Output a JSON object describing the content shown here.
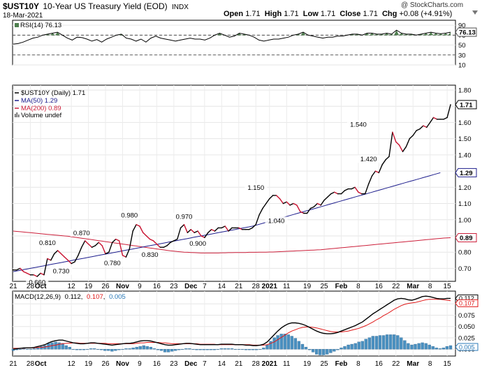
{
  "header": {
    "symbol": "$UST10Y",
    "description": "10-Year US Treasury Yield (EOD)",
    "exchange": "INDX",
    "date": "18-Mar-2021",
    "copyright": "@ StockCharts.com",
    "quote": {
      "open_label": "Open",
      "open": "1.71",
      "high_label": "High",
      "high": "1.71",
      "low_label": "Low",
      "low": "1.71",
      "close_label": "Close",
      "close": "1.71",
      "chg_label": "Chg",
      "chg": "+0.08 (+4.91%)"
    },
    "menu_icon": "triangle-down-icon"
  },
  "colors": {
    "price": "#000000",
    "ma50": "#1c1c8c",
    "ma200": "#cc1f3a",
    "hist": "#4a90c0",
    "rsi_fill": "#4f7f4f"
  },
  "chart_data": [
    {
      "type": "line",
      "panel": "rsi",
      "legend": "RSI(14) 76.13",
      "current_label": "76.13",
      "ticks": [
        "90",
        "70",
        "50",
        "30",
        "10"
      ],
      "ylim": [
        10,
        100
      ],
      "levels": [
        70,
        30
      ],
      "series": [
        {
          "name": "RSI(14)",
          "values": [
            52,
            53,
            56,
            60,
            64,
            66,
            70,
            72,
            74,
            76,
            70,
            64,
            60,
            66,
            65,
            62,
            58,
            61,
            56,
            62,
            66,
            70,
            72,
            64,
            62,
            58,
            62,
            56,
            64,
            68,
            64,
            62,
            60,
            58,
            60,
            62,
            64,
            62,
            62,
            60,
            64,
            70,
            74,
            70,
            66,
            68,
            74,
            72,
            70,
            66,
            60,
            58,
            60,
            62,
            62,
            64,
            66,
            70,
            72,
            76,
            70,
            68,
            66,
            64,
            66,
            66,
            68,
            68,
            70,
            72,
            72,
            70,
            74,
            74,
            72,
            72,
            74,
            72,
            80,
            74,
            72,
            72,
            70,
            72,
            74,
            76,
            74,
            73,
            74,
            76
          ]
        }
      ]
    },
    {
      "type": "line",
      "panel": "price",
      "legends": [
        "$UST10Y (Daily) 1.71",
        "MA(50) 1.29",
        "MA(200) 0.89",
        "Volume undef"
      ],
      "ticks": [
        "1.80",
        "1.70",
        "1.60",
        "1.50",
        "1.40",
        "1.30",
        "1.20",
        "1.10",
        "1.00",
        "0.90",
        "0.80",
        "0.70"
      ],
      "ylim": [
        0.62,
        1.83
      ],
      "last_labels": [
        {
          "text": "1.71",
          "series": "price"
        },
        {
          "text": "1.29",
          "series": "ma50"
        },
        {
          "text": "0.89",
          "series": "ma200"
        }
      ],
      "x_ticks": [
        {
          "label": "21",
          "i": 0
        },
        {
          "label": "28",
          "i": 5
        },
        {
          "label": "Oct",
          "i": 8
        },
        {
          "label": "12",
          "i": 17
        },
        {
          "label": "19",
          "i": 22
        },
        {
          "label": "26",
          "i": 27
        },
        {
          "label": "Nov",
          "i": 32
        },
        {
          "label": "9",
          "i": 37
        },
        {
          "label": "16",
          "i": 42
        },
        {
          "label": "23",
          "i": 47
        },
        {
          "label": "Dec",
          "i": 52
        },
        {
          "label": "7",
          "i": 56
        },
        {
          "label": "14",
          "i": 61
        },
        {
          "label": "21",
          "i": 66
        },
        {
          "label": "28",
          "i": 71
        },
        {
          "label": "2021",
          "i": 75
        },
        {
          "label": "11",
          "i": 80
        },
        {
          "label": "19",
          "i": 86
        },
        {
          "label": "25",
          "i": 91
        },
        {
          "label": "Feb",
          "i": 96
        },
        {
          "label": "8",
          "i": 101
        },
        {
          "label": "16",
          "i": 107
        },
        {
          "label": "22",
          "i": 112
        },
        {
          "label": "Mar",
          "i": 117
        },
        {
          "label": "8",
          "i": 122
        },
        {
          "label": "15",
          "i": 127
        }
      ],
      "annotations": [
        {
          "text": "0.660",
          "i": 7,
          "v": 0.66,
          "pos": "below"
        },
        {
          "text": "0.810",
          "i": 10,
          "v": 0.81,
          "pos": "above"
        },
        {
          "text": "0.730",
          "i": 14,
          "v": 0.73,
          "pos": "below"
        },
        {
          "text": "0.870",
          "i": 20,
          "v": 0.87,
          "pos": "above"
        },
        {
          "text": "0.780",
          "i": 29,
          "v": 0.78,
          "pos": "below"
        },
        {
          "text": "0.980",
          "i": 34,
          "v": 0.98,
          "pos": "above"
        },
        {
          "text": "0.830",
          "i": 40,
          "v": 0.83,
          "pos": "below"
        },
        {
          "text": "0.970",
          "i": 50,
          "v": 0.97,
          "pos": "above"
        },
        {
          "text": "0.900",
          "i": 54,
          "v": 0.9,
          "pos": "below"
        },
        {
          "text": "1.150",
          "i": 71,
          "v": 1.15,
          "pos": "above"
        },
        {
          "text": "1.040",
          "i": 77,
          "v": 1.04,
          "pos": "below"
        },
        {
          "text": "1.540",
          "i": 101,
          "v": 1.54,
          "pos": "above"
        },
        {
          "text": "1.420",
          "i": 104,
          "v": 1.42,
          "pos": "below"
        }
      ],
      "series": [
        {
          "name": "$UST10Y",
          "values": [
            0.69,
            0.69,
            0.7,
            0.68,
            0.67,
            0.66,
            0.66,
            0.65,
            0.67,
            0.66,
            0.76,
            0.75,
            0.79,
            0.81,
            0.79,
            0.77,
            0.75,
            0.73,
            0.74,
            0.78,
            0.83,
            0.87,
            0.85,
            0.83,
            0.84,
            0.86,
            0.84,
            0.79,
            0.8,
            0.86,
            0.88,
            0.87,
            0.78,
            0.77,
            0.82,
            0.93,
            0.97,
            0.96,
            0.92,
            0.9,
            0.88,
            0.87,
            0.85,
            0.83,
            0.83,
            0.84,
            0.86,
            0.87,
            0.88,
            0.95,
            0.97,
            0.92,
            0.94,
            0.92,
            0.93,
            0.9,
            0.89,
            0.92,
            0.94,
            0.93,
            0.95,
            0.95,
            0.96,
            0.93,
            0.95,
            0.95,
            0.95,
            0.94,
            0.94,
            0.94,
            0.95,
            0.97,
            1.03,
            1.07,
            1.1,
            1.13,
            1.15,
            1.15,
            1.13,
            1.1,
            1.11,
            1.09,
            1.1,
            1.09,
            1.05,
            1.04,
            1.04,
            1.07,
            1.08,
            1.1,
            1.09,
            1.12,
            1.14,
            1.16,
            1.17,
            1.16,
            1.16,
            1.18,
            1.19,
            1.19,
            1.2,
            1.17,
            1.16,
            1.16,
            1.22,
            1.27,
            1.3,
            1.29,
            1.34,
            1.37,
            1.39,
            1.54,
            1.48,
            1.46,
            1.42,
            1.45,
            1.5,
            1.52,
            1.55,
            1.56,
            1.58,
            1.57,
            1.6,
            1.63,
            1.62,
            1.62,
            1.62,
            1.63,
            1.71
          ]
        },
        {
          "name": "MA(50)",
          "values": [
            0.68,
            0.684,
            0.688,
            0.692,
            0.696,
            0.7,
            0.704,
            0.708,
            0.712,
            0.716,
            0.72,
            0.724,
            0.728,
            0.732,
            0.736,
            0.74,
            0.744,
            0.748,
            0.752,
            0.756,
            0.76,
            0.764,
            0.768,
            0.772,
            0.776,
            0.78,
            0.784,
            0.788,
            0.792,
            0.796,
            0.8,
            0.804,
            0.808,
            0.812,
            0.816,
            0.82,
            0.824,
            0.828,
            0.832,
            0.836,
            0.84,
            0.844,
            0.848,
            0.852,
            0.856,
            0.86,
            0.864,
            0.868,
            0.872,
            0.876,
            0.88,
            0.884,
            0.888,
            0.892,
            0.896,
            0.9,
            0.904,
            0.908,
            0.912,
            0.916,
            0.92,
            0.924,
            0.928,
            0.932,
            0.936,
            0.94,
            0.944,
            0.948,
            0.952,
            0.956,
            0.96,
            0.966,
            0.972,
            0.978,
            0.984,
            0.99,
            0.996,
            1.002,
            1.008,
            1.014,
            1.02,
            1.026,
            1.032,
            1.038,
            1.044,
            1.05,
            1.056,
            1.062,
            1.068,
            1.074,
            1.08,
            1.086,
            1.092,
            1.098,
            1.104,
            1.11,
            1.116,
            1.122,
            1.128,
            1.134,
            1.14,
            1.146,
            1.152,
            1.158,
            1.164,
            1.17,
            1.176,
            1.182,
            1.188,
            1.194,
            1.2,
            1.206,
            1.212,
            1.218,
            1.224,
            1.23,
            1.236,
            1.242,
            1.248,
            1.254,
            1.26,
            1.266,
            1.272,
            1.278,
            1.284,
            1.29
          ]
        },
        {
          "name": "MA(200)",
          "values": [
            0.93,
            0.928,
            0.926,
            0.924,
            0.922,
            0.92,
            0.918,
            0.916,
            0.914,
            0.912,
            0.91,
            0.908,
            0.906,
            0.904,
            0.902,
            0.9,
            0.898,
            0.895,
            0.892,
            0.889,
            0.886,
            0.883,
            0.88,
            0.877,
            0.874,
            0.871,
            0.868,
            0.865,
            0.862,
            0.859,
            0.856,
            0.853,
            0.85,
            0.847,
            0.844,
            0.841,
            0.838,
            0.835,
            0.832,
            0.829,
            0.826,
            0.823,
            0.82,
            0.817,
            0.814,
            0.811,
            0.808,
            0.806,
            0.804,
            0.802,
            0.8,
            0.799,
            0.798,
            0.797,
            0.796,
            0.795,
            0.795,
            0.795,
            0.795,
            0.795,
            0.795,
            0.796,
            0.796,
            0.797,
            0.797,
            0.798,
            0.798,
            0.798,
            0.798,
            0.799,
            0.799,
            0.799,
            0.8,
            0.8,
            0.8,
            0.801,
            0.801,
            0.802,
            0.803,
            0.804,
            0.805,
            0.806,
            0.807,
            0.808,
            0.809,
            0.81,
            0.811,
            0.812,
            0.813,
            0.814,
            0.815,
            0.817,
            0.819,
            0.821,
            0.823,
            0.825,
            0.827,
            0.829,
            0.831,
            0.833,
            0.835,
            0.837,
            0.839,
            0.841,
            0.843,
            0.845,
            0.847,
            0.849,
            0.851,
            0.853,
            0.855,
            0.857,
            0.859,
            0.861,
            0.863,
            0.865,
            0.867,
            0.869,
            0.871,
            0.873,
            0.875,
            0.877,
            0.879,
            0.881,
            0.883,
            0.885,
            0.887,
            0.888,
            0.889
          ]
        }
      ]
    },
    {
      "type": "line",
      "panel": "macd",
      "legend_prefix": "MACD(12,26,9)",
      "legend_macd": "0.112",
      "legend_signal": "0.107",
      "legend_hist": "0.005",
      "ticks": [
        "0.100",
        "0.075",
        "0.050",
        "0.025",
        "0.000"
      ],
      "ylim": [
        -0.015,
        0.128
      ],
      "last_labels": [
        "0.112",
        "0.107",
        "0.005"
      ],
      "series": [
        {
          "name": "MACD",
          "values": [
            0.0,
            0.001,
            0.002,
            0.003,
            0.003,
            0.003,
            0.004,
            0.006,
            0.008,
            0.01,
            0.014,
            0.017,
            0.019,
            0.02,
            0.02,
            0.018,
            0.016,
            0.014,
            0.013,
            0.012,
            0.012,
            0.013,
            0.014,
            0.014,
            0.013,
            0.012,
            0.011,
            0.01,
            0.009,
            0.01,
            0.011,
            0.012,
            0.013,
            0.013,
            0.014,
            0.016,
            0.018,
            0.019,
            0.019,
            0.018,
            0.016,
            0.014,
            0.012,
            0.01,
            0.009,
            0.009,
            0.01,
            0.011,
            0.012,
            0.013,
            0.013,
            0.012,
            0.011,
            0.01,
            0.01,
            0.01,
            0.01,
            0.01,
            0.01,
            0.011,
            0.011,
            0.011,
            0.011,
            0.01,
            0.01,
            0.01,
            0.009,
            0.009,
            0.008,
            0.008,
            0.009,
            0.011,
            0.016,
            0.024,
            0.032,
            0.04,
            0.047,
            0.052,
            0.056,
            0.058,
            0.058,
            0.057,
            0.055,
            0.052,
            0.048,
            0.044,
            0.04,
            0.037,
            0.035,
            0.034,
            0.034,
            0.035,
            0.037,
            0.04,
            0.043,
            0.046,
            0.049,
            0.052,
            0.056,
            0.06,
            0.066,
            0.072,
            0.078,
            0.083,
            0.088,
            0.093,
            0.098,
            0.103,
            0.108,
            0.111,
            0.112,
            0.111,
            0.109,
            0.108,
            0.11,
            0.113,
            0.116,
            0.117,
            0.116,
            0.114,
            0.112,
            0.111,
            0.111,
            0.112,
            0.112
          ]
        },
        {
          "name": "Signal",
          "values": [
            0.002,
            0.002,
            0.002,
            0.002,
            0.003,
            0.003,
            0.003,
            0.004,
            0.004,
            0.005,
            0.006,
            0.008,
            0.009,
            0.011,
            0.012,
            0.013,
            0.013,
            0.014,
            0.014,
            0.013,
            0.013,
            0.013,
            0.013,
            0.013,
            0.013,
            0.013,
            0.013,
            0.012,
            0.012,
            0.012,
            0.012,
            0.012,
            0.012,
            0.012,
            0.012,
            0.013,
            0.014,
            0.014,
            0.015,
            0.015,
            0.015,
            0.015,
            0.014,
            0.014,
            0.013,
            0.012,
            0.012,
            0.012,
            0.012,
            0.012,
            0.012,
            0.012,
            0.012,
            0.011,
            0.011,
            0.011,
            0.011,
            0.011,
            0.01,
            0.01,
            0.01,
            0.01,
            0.01,
            0.01,
            0.01,
            0.01,
            0.01,
            0.01,
            0.009,
            0.009,
            0.009,
            0.009,
            0.01,
            0.013,
            0.016,
            0.021,
            0.026,
            0.031,
            0.036,
            0.04,
            0.043,
            0.046,
            0.048,
            0.049,
            0.049,
            0.048,
            0.047,
            0.045,
            0.043,
            0.041,
            0.039,
            0.038,
            0.038,
            0.038,
            0.039,
            0.04,
            0.042,
            0.044,
            0.046,
            0.049,
            0.052,
            0.056,
            0.06,
            0.065,
            0.069,
            0.074,
            0.078,
            0.083,
            0.088,
            0.092,
            0.096,
            0.099,
            0.101,
            0.102,
            0.103,
            0.105,
            0.107,
            0.109,
            0.11,
            0.11,
            0.11,
            0.11,
            0.109,
            0.108,
            0.107
          ]
        }
      ]
    }
  ]
}
